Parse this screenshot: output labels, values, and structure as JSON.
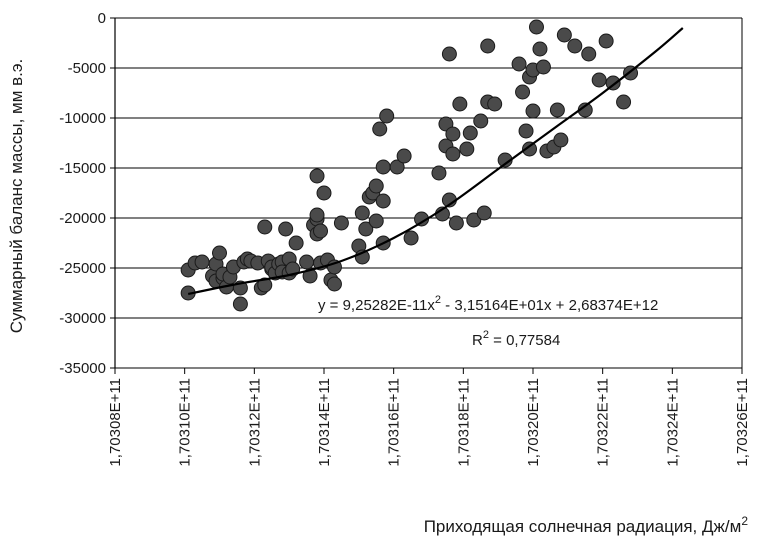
{
  "chart_data": {
    "type": "scatter",
    "xlabel": "Приходящая солнечная радиация, Дж/м",
    "xlabel_sup": "2",
    "ylabel": "Суммарный баланс массы, мм в.э.",
    "ylim": [
      -35000,
      0
    ],
    "yticks": [
      0,
      -5000,
      -10000,
      -15000,
      -20000,
      -25000,
      -30000,
      -35000
    ],
    "ytick_labels": [
      "0",
      "-5000",
      "-10000",
      "-15000",
      "-20000",
      "-25000",
      "-30000",
      "-35000"
    ],
    "xlim": [
      170308000000.0,
      170326000000.0
    ],
    "xticks": [
      170308000000.0,
      170310000000.0,
      170312000000.0,
      170314000000.0,
      170316000000.0,
      170318000000.0,
      170320000000.0,
      170322000000.0,
      170324000000.0,
      170326000000.0
    ],
    "xtick_labels": [
      "1,70308E+11",
      "1,70310E+11",
      "1,70312E+11",
      "1,70314E+11",
      "1,70316E+11",
      "1,70318E+11",
      "1,70320E+11",
      "1,70322E+11",
      "1,70324E+11",
      "1,70326E+11"
    ],
    "grid": "horizontal",
    "legend": "none",
    "colors": {
      "marker": "#4a4a4a",
      "marker_edge": "#1a1a1a",
      "trendline": "#000000",
      "grid": "#000000"
    },
    "equation": {
      "pre": "y = 9,25282E-11x",
      "sup": "2",
      "post": " - 3,15164E+01x + 2,68374E+12"
    },
    "r2": {
      "pre": "R",
      "sup": "2",
      "post": " = 0,77584"
    },
    "trendline_points": [
      [
        170310100000.0,
        -27600
      ],
      [
        170311500000.0,
        -26600
      ],
      [
        170313000000.0,
        -25700
      ],
      [
        170314500000.0,
        -24300
      ],
      [
        170316000000.0,
        -22000
      ],
      [
        170317500000.0,
        -18900
      ],
      [
        170319000000.0,
        -15100
      ],
      [
        170320500000.0,
        -11300
      ],
      [
        170322000000.0,
        -7500
      ],
      [
        170323500000.0,
        -3400
      ],
      [
        170324300000.0,
        -1000
      ]
    ],
    "points": [
      [
        170310100000.0,
        -25200
      ],
      [
        170310100000.0,
        -27500
      ],
      [
        170310300000.0,
        -24500
      ],
      [
        170310500000.0,
        -24400
      ],
      [
        170310800000.0,
        -25800
      ],
      [
        170310900000.0,
        -24600
      ],
      [
        170310900000.0,
        -26300
      ],
      [
        170311000000.0,
        -23500
      ],
      [
        170311100000.0,
        -26000
      ],
      [
        170311100000.0,
        -25600
      ],
      [
        170311200000.0,
        -26900
      ],
      [
        170311300000.0,
        -25900
      ],
      [
        170311400000.0,
        -24900
      ],
      [
        170311600000.0,
        -27000
      ],
      [
        170311600000.0,
        -28600
      ],
      [
        170311700000.0,
        -24400
      ],
      [
        170311800000.0,
        -24100
      ],
      [
        170311900000.0,
        -24300
      ],
      [
        170312100000.0,
        -24500
      ],
      [
        170312200000.0,
        -27000
      ],
      [
        170312300000.0,
        -26700
      ],
      [
        170312300000.0,
        -20900
      ],
      [
        170312400000.0,
        -24300
      ],
      [
        170312500000.0,
        -25100
      ],
      [
        170312500000.0,
        -24900
      ],
      [
        170312600000.0,
        -25500
      ],
      [
        170312700000.0,
        -24600
      ],
      [
        170312800000.0,
        -24400
      ],
      [
        170312800000.0,
        -25400
      ],
      [
        170312900000.0,
        -21100
      ],
      [
        170313000000.0,
        -24100
      ],
      [
        170313000000.0,
        -25500
      ],
      [
        170313100000.0,
        -25100
      ],
      [
        170313200000.0,
        -22500
      ],
      [
        170313500000.0,
        -24400
      ],
      [
        170313600000.0,
        -25800
      ],
      [
        170313700000.0,
        -20700
      ],
      [
        170313800000.0,
        -20100
      ],
      [
        170313800000.0,
        -19700
      ],
      [
        170313800000.0,
        -21600
      ],
      [
        170313800000.0,
        -15800
      ],
      [
        170313900000.0,
        -21300
      ],
      [
        170313900000.0,
        -24500
      ],
      [
        170314000000.0,
        -17500
      ],
      [
        170314100000.0,
        -24200
      ],
      [
        170314200000.0,
        -26200
      ],
      [
        170314300000.0,
        -24900
      ],
      [
        170314300000.0,
        -26600
      ],
      [
        170314500000.0,
        -20500
      ],
      [
        170315000000.0,
        -22800
      ],
      [
        170315100000.0,
        -23900
      ],
      [
        170315100000.0,
        -19500
      ],
      [
        170315200000.0,
        -21100
      ],
      [
        170315300000.0,
        -17900
      ],
      [
        170315400000.0,
        -17500
      ],
      [
        170315500000.0,
        -16800
      ],
      [
        170315500000.0,
        -20300
      ],
      [
        170315600000.0,
        -11100
      ],
      [
        170315700000.0,
        -14900
      ],
      [
        170315700000.0,
        -18300
      ],
      [
        170315700000.0,
        -22500
      ],
      [
        170315800000.0,
        -9800
      ],
      [
        170316100000.0,
        -14900
      ],
      [
        170316300000.0,
        -13800
      ],
      [
        170316500000.0,
        -22000
      ],
      [
        170316800000.0,
        -20100
      ],
      [
        170317300000.0,
        -15500
      ],
      [
        170317400000.0,
        -19600
      ],
      [
        170317500000.0,
        -12800
      ],
      [
        170317500000.0,
        -10600
      ],
      [
        170317600000.0,
        -18200
      ],
      [
        170317600000.0,
        -3600
      ],
      [
        170317700000.0,
        -11600
      ],
      [
        170317700000.0,
        -13600
      ],
      [
        170317800000.0,
        -20500
      ],
      [
        170317900000.0,
        -8600
      ],
      [
        170318100000.0,
        -13100
      ],
      [
        170318200000.0,
        -11500
      ],
      [
        170318300000.0,
        -20200
      ],
      [
        170318500000.0,
        -10300
      ],
      [
        170318600000.0,
        -19500
      ],
      [
        170318700000.0,
        -2800
      ],
      [
        170318700000.0,
        -8400
      ],
      [
        170318900000.0,
        -8600
      ],
      [
        170319200000.0,
        -14200
      ],
      [
        170319600000.0,
        -4600
      ],
      [
        170319700000.0,
        -7400
      ],
      [
        170319800000.0,
        -11300
      ],
      [
        170319900000.0,
        -13100
      ],
      [
        170319900000.0,
        -5900
      ],
      [
        170320000000.0,
        -9300
      ],
      [
        170320000000.0,
        -5200
      ],
      [
        170320100000.0,
        -900
      ],
      [
        170320200000.0,
        -3100
      ],
      [
        170320300000.0,
        -4900
      ],
      [
        170320400000.0,
        -13300
      ],
      [
        170320600000.0,
        -12900
      ],
      [
        170320700000.0,
        -9200
      ],
      [
        170320800000.0,
        -12200
      ],
      [
        170320900000.0,
        -1700
      ],
      [
        170321200000.0,
        -2800
      ],
      [
        170321500000.0,
        -9200
      ],
      [
        170321600000.0,
        -3600
      ],
      [
        170321900000.0,
        -6200
      ],
      [
        170322100000.0,
        -2300
      ],
      [
        170322300000.0,
        -6500
      ],
      [
        170322600000.0,
        -8400
      ],
      [
        170322800000.0,
        -5500
      ]
    ]
  }
}
